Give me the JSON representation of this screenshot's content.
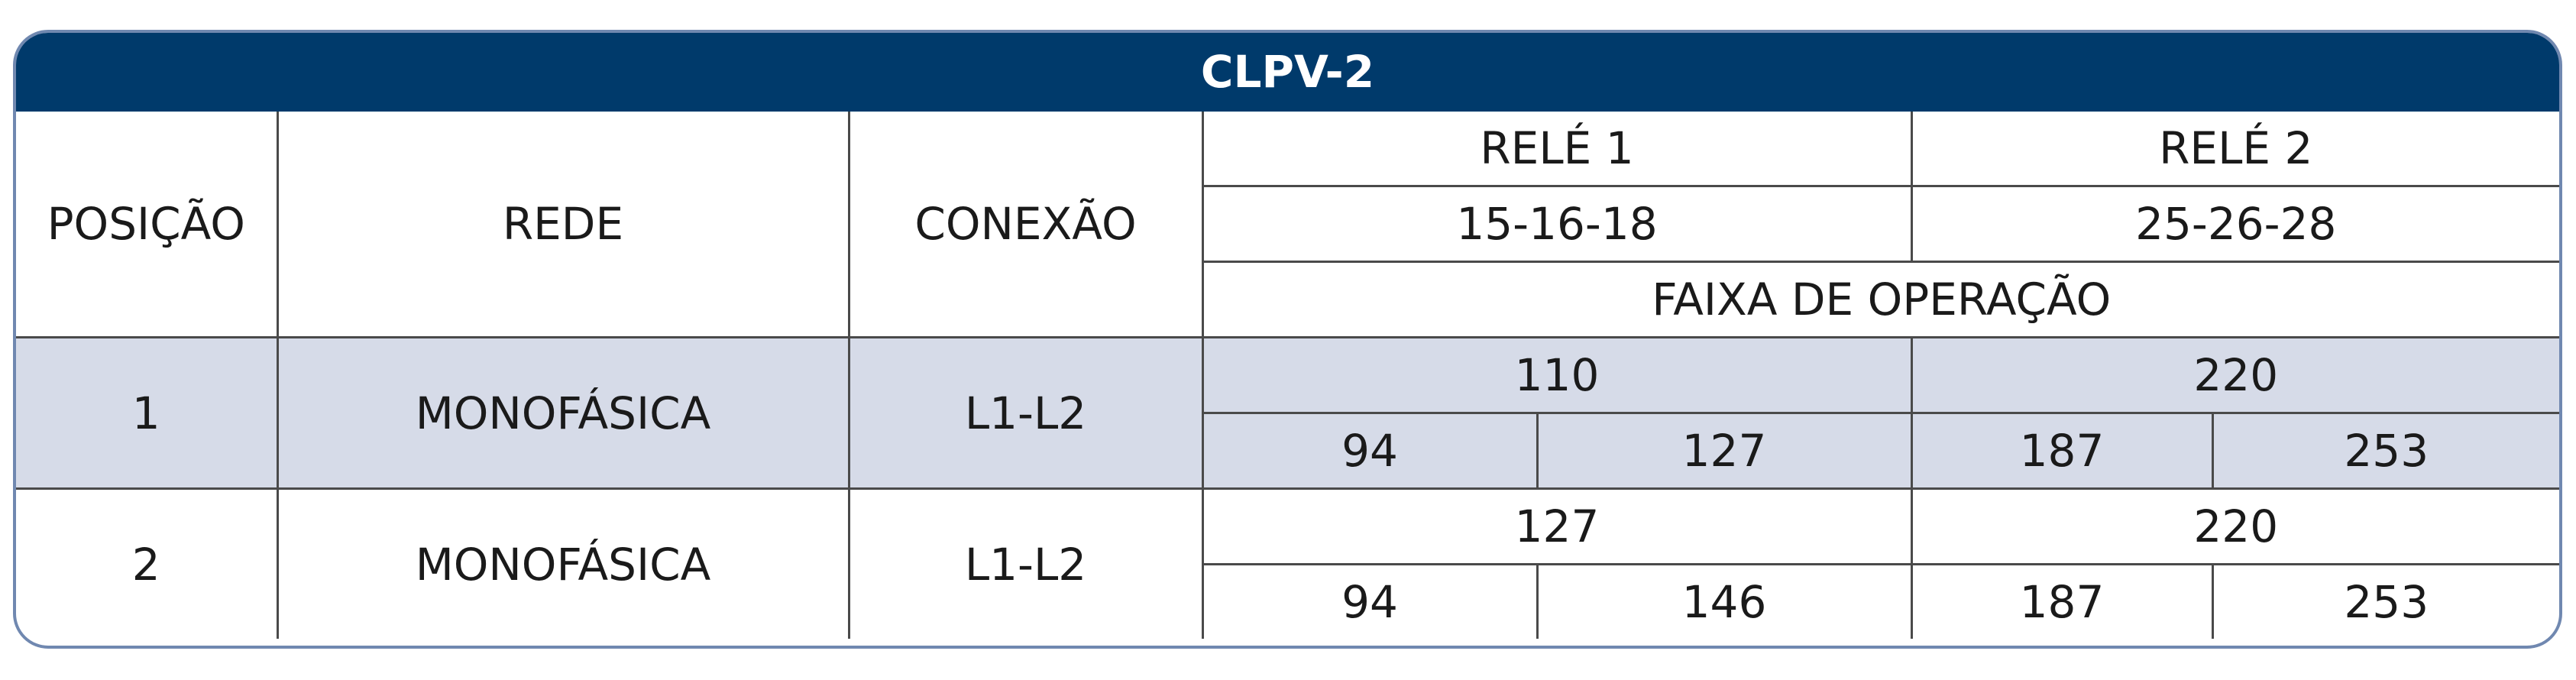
{
  "title": "CLPV-2",
  "header": {
    "position": "POSIÇÃO",
    "network": "REDE",
    "connection": "CONEXÃO",
    "relays": [
      {
        "name": "RELÉ 1",
        "terminals": "15-16-18"
      },
      {
        "name": "RELÉ 2",
        "terminals": "25-26-28"
      }
    ],
    "range_label": "FAIXA DE OPERAÇÃO"
  },
  "rows": [
    {
      "position": 1,
      "network": "MONOFÁSICA",
      "connection": "L1-L2",
      "relays": [
        {
          "nominal": 110,
          "min": 94,
          "max": 127
        },
        {
          "nominal": 220,
          "min": 187,
          "max": 253
        }
      ]
    },
    {
      "position": 2,
      "network": "MONOFÁSICA",
      "connection": "L1-L2",
      "relays": [
        {
          "nominal": 127,
          "min": 94,
          "max": 146
        },
        {
          "nominal": 220,
          "min": 187,
          "max": 253
        }
      ]
    }
  ]
}
